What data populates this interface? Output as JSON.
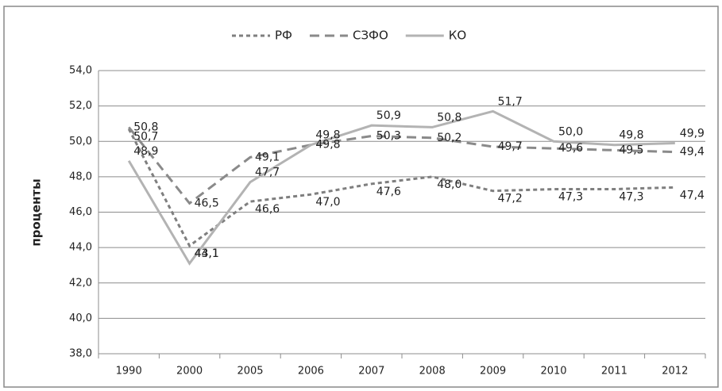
{
  "chart_data": {
    "type": "line",
    "ylabel": "проценты",
    "categories": [
      "1990",
      "2000",
      "2005",
      "2006",
      "2007",
      "2008",
      "2009",
      "2010",
      "2011",
      "2012"
    ],
    "series": [
      {
        "name": "РФ",
        "color": "#7f7f7f",
        "values": [
          50.7,
          44.1,
          46.6,
          47.0,
          47.6,
          48.0,
          47.2,
          47.3,
          47.3,
          47.4
        ],
        "value_labels": [
          "50,7",
          "44,1",
          "46,6",
          "47,0",
          "47,6",
          "48,0",
          "47,2",
          "47,3",
          "47,3",
          "47,4"
        ]
      },
      {
        "name": "СЗФО",
        "color": "#8a8a8a",
        "values": [
          50.8,
          46.5,
          49.1,
          49.8,
          50.3,
          50.2,
          49.7,
          49.6,
          49.5,
          49.4
        ],
        "value_labels": [
          "50,8",
          "46,5",
          "49,1",
          "49,8",
          "50,3",
          "50,2",
          "49,7",
          "49,6",
          "49,5",
          "49,4"
        ]
      },
      {
        "name": "КО",
        "color": "#b3b3b3",
        "values": [
          48.9,
          43.1,
          47.7,
          49.8,
          50.9,
          50.8,
          51.7,
          50.0,
          49.8,
          49.9
        ],
        "value_labels": [
          "48,9",
          "43,1",
          "47,7",
          "49,8",
          "50,9",
          "50,8",
          "51,7",
          "50,0",
          "49,8",
          "49,9"
        ]
      }
    ],
    "ylim": [
      38,
      54
    ],
    "yticks": [
      {
        "value": 38,
        "label": "38,0"
      },
      {
        "value": 40,
        "label": "40,0"
      },
      {
        "value": 42,
        "label": "42,0"
      },
      {
        "value": 44,
        "label": "44,0"
      },
      {
        "value": 46,
        "label": "46,0"
      },
      {
        "value": 48,
        "label": "48,0"
      },
      {
        "value": 50,
        "label": "50,0"
      },
      {
        "value": 52,
        "label": "52,0"
      },
      {
        "value": 54,
        "label": "54,0"
      }
    ],
    "grid": true,
    "legend": "top"
  }
}
